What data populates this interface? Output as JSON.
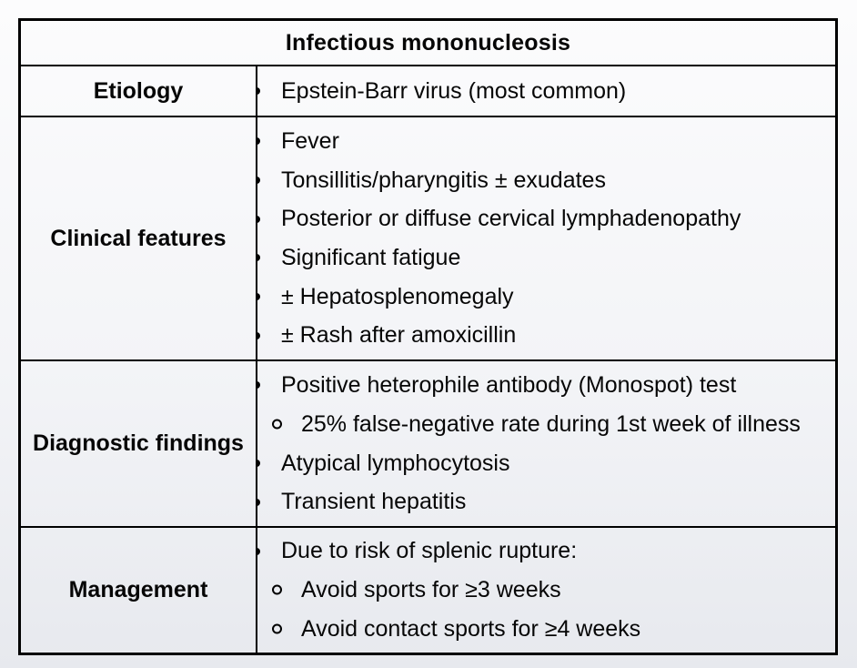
{
  "page": {
    "background_top": "#fcfcfd",
    "background_bottom": "#e7e9ee",
    "border_color": "#000000",
    "text_color": "#060606"
  },
  "table": {
    "title": "Infectious mononucleosis",
    "rows": [
      {
        "label": "Etiology",
        "items": [
          {
            "level": 1,
            "text": "Epstein-Barr virus (most common)"
          }
        ]
      },
      {
        "label": "Clinical features",
        "items": [
          {
            "level": 1,
            "text": "Fever"
          },
          {
            "level": 1,
            "text": "Tonsillitis/pharyngitis ± exudates"
          },
          {
            "level": 1,
            "text": "Posterior or diffuse cervical lymphadenopathy"
          },
          {
            "level": 1,
            "text": "Significant fatigue"
          },
          {
            "level": 1,
            "text": "± Hepatosplenomegaly"
          },
          {
            "level": 1,
            "text": "± Rash after amoxicillin"
          }
        ]
      },
      {
        "label": "Diagnostic findings",
        "items": [
          {
            "level": 1,
            "text": "Positive heterophile antibody (Monospot) test"
          },
          {
            "level": 2,
            "text": "25% false-negative rate during 1st week of illness"
          },
          {
            "level": 1,
            "text": "Atypical lymphocytosis"
          },
          {
            "level": 1,
            "text": "Transient hepatitis"
          }
        ]
      },
      {
        "label": "Management",
        "items": [
          {
            "level": 1,
            "text": "Due to risk of splenic rupture:"
          },
          {
            "level": 2,
            "text": "Avoid sports for ≥3 weeks"
          },
          {
            "level": 2,
            "text": "Avoid contact sports for ≥4 weeks"
          }
        ]
      }
    ]
  }
}
